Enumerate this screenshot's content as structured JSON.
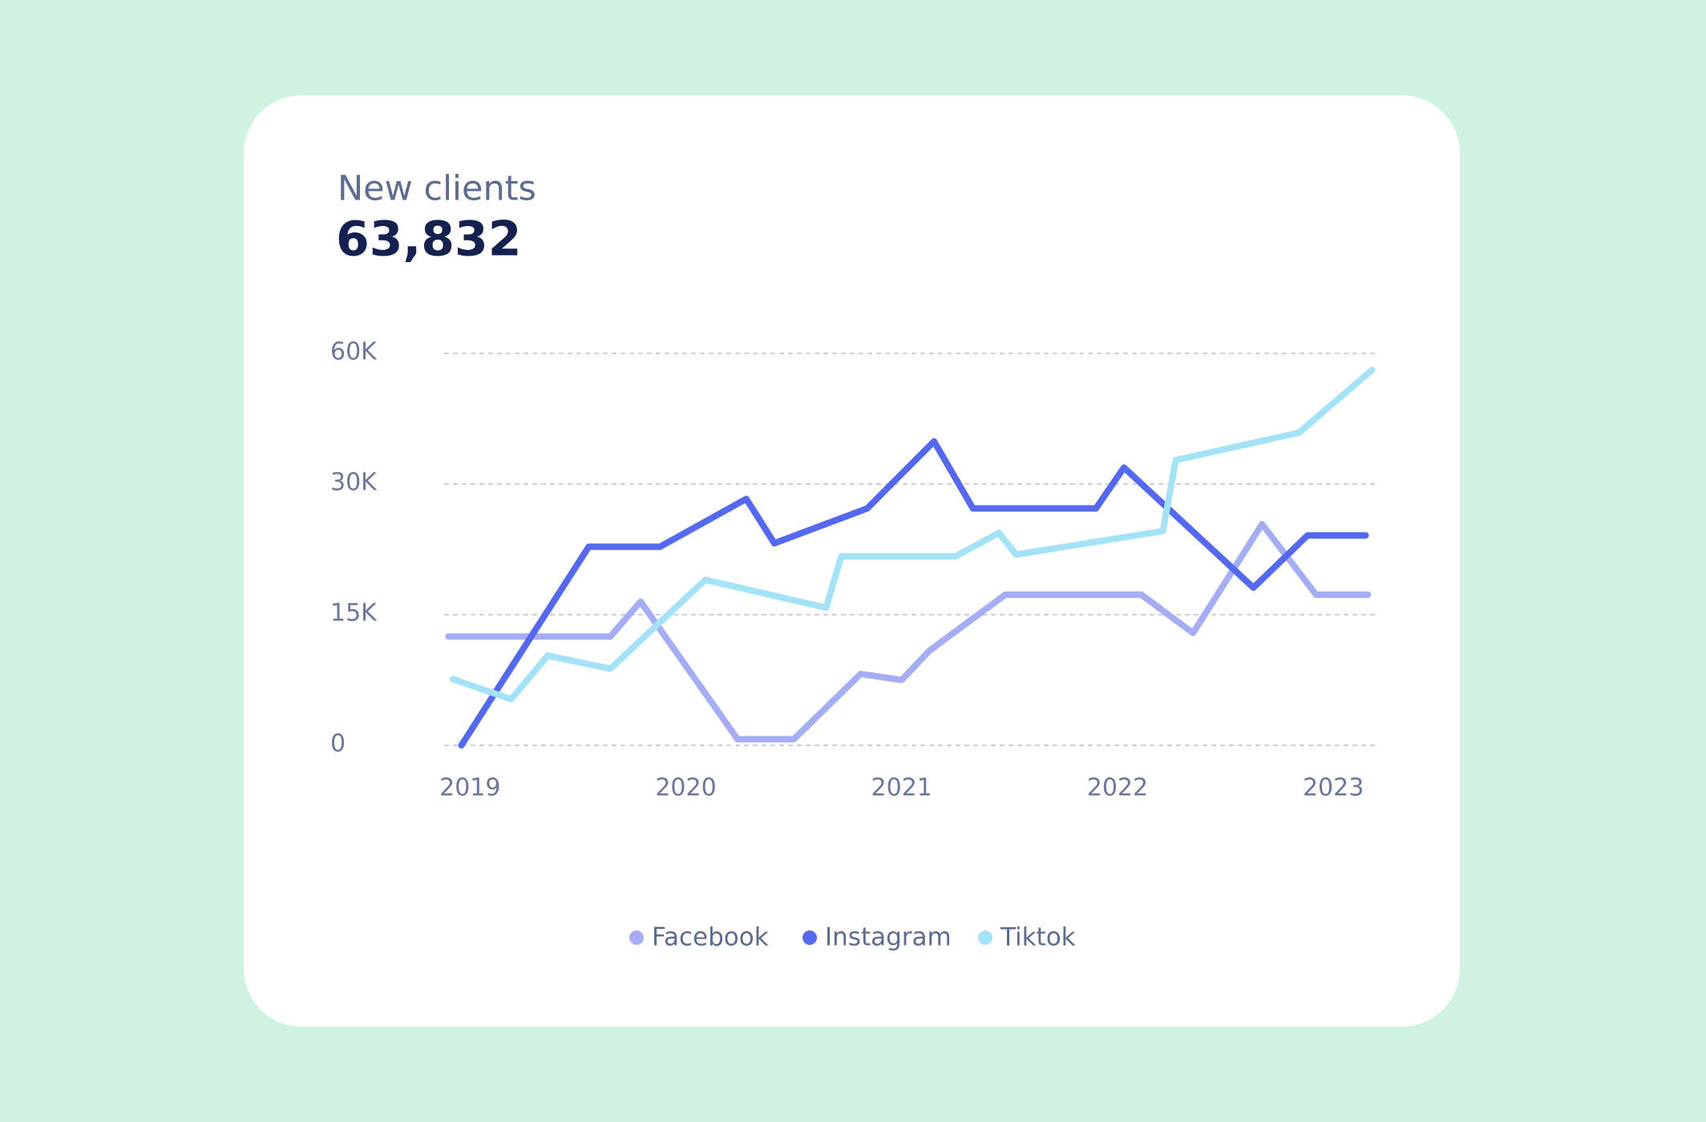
{
  "chart_data": {
    "type": "line",
    "title": "New clients",
    "subtitle": "63,832",
    "xlim": [
      2018.88,
      2023.2
    ],
    "xticks": [
      2019,
      2020,
      2021,
      2022,
      2023
    ],
    "ylim": [
      0,
      60000
    ],
    "yticks": [
      0,
      {
        "value": 15000,
        "label": "15K"
      },
      {
        "value": 30000,
        "label": "30K"
      },
      {
        "value": 60000,
        "label": "60K"
      }
    ],
    "grid": true,
    "series": [
      {
        "name": "Facebook",
        "color": "#a5aef5",
        "x": [
          2018.9,
          2019.65,
          2019.79,
          2020.24,
          2020.5,
          2020.81,
          2021.0,
          2021.13,
          2021.48,
          2022.11,
          2022.35,
          2022.67,
          2022.92,
          2023.16
        ],
        "values": [
          12500,
          12500,
          16500,
          700,
          700,
          8200,
          7500,
          10900,
          17300,
          17300,
          12900,
          25400,
          17300,
          17300
        ]
      },
      {
        "name": "Instagram",
        "color": "#5468f0",
        "x": [
          2018.96,
          2019.55,
          2019.88,
          2020.28,
          2020.41,
          2020.84,
          2021.15,
          2021.33,
          2021.9,
          2022.03,
          2022.63,
          2022.88,
          2023.15
        ],
        "values": [
          0,
          22800,
          22800,
          28300,
          23200,
          27200,
          39800,
          27200,
          27200,
          33800,
          18100,
          24100,
          24100
        ]
      },
      {
        "name": "Tiktok",
        "color": "#a3e2f7",
        "x": [
          2018.92,
          2019.19,
          2019.36,
          2019.65,
          2020.09,
          2020.65,
          2020.72,
          2021.25,
          2021.45,
          2021.53,
          2022.21,
          2022.27,
          2022.84,
          2023.18
        ],
        "values": [
          7600,
          5300,
          10300,
          8800,
          19000,
          15800,
          21700,
          21700,
          24400,
          21900,
          24600,
          35500,
          41800,
          56200
        ]
      }
    ]
  }
}
